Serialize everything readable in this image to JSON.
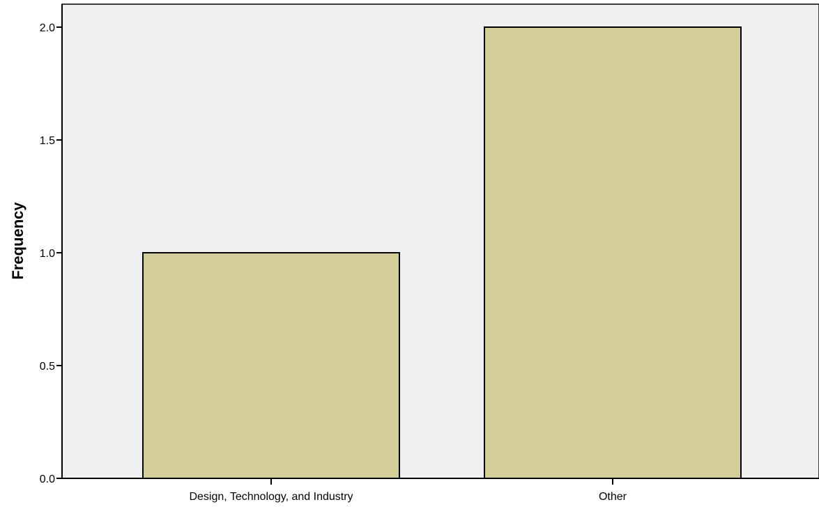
{
  "chart_data": {
    "type": "bar",
    "categories": [
      "Design, Technology, and Industry",
      "Other"
    ],
    "values": [
      1,
      2
    ],
    "title": "",
    "xlabel": "",
    "ylabel": "Frequency",
    "ylim": [
      0,
      2.0
    ],
    "yticks": [
      "0.0",
      "0.5",
      "1.0",
      "1.5",
      "2.0"
    ],
    "grid": false,
    "legend": "none",
    "colors": {
      "plot_background": "#f0f0f0",
      "bar_fill": "#d3ce98",
      "bar_stroke": "#000000"
    }
  }
}
